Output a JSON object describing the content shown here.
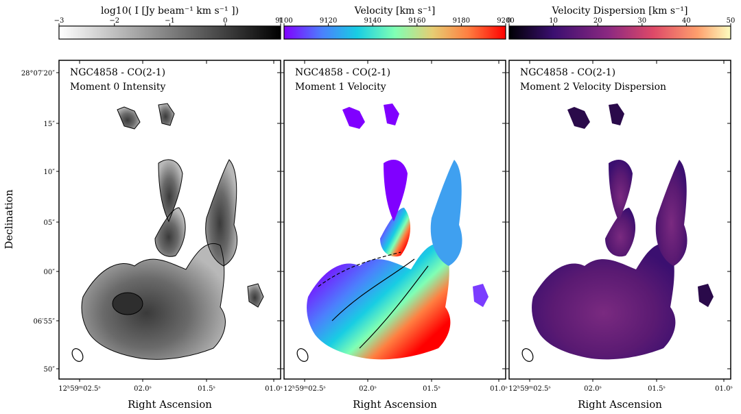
{
  "figure": {
    "ylabel": "Declination",
    "xlabel": "Right Ascension"
  },
  "colorbars": [
    {
      "label": "log10( I [Jy beam⁻¹ km s⁻¹ ])",
      "ticks": [
        "−3",
        "−2",
        "−1",
        "0",
        "1"
      ],
      "range": [
        -3,
        1
      ],
      "cmap": "gray_r"
    },
    {
      "label": "Velocity [km s⁻¹]",
      "ticks": [
        "9100",
        "9120",
        "9140",
        "9160",
        "9180",
        "9200"
      ],
      "range": [
        9100,
        9200
      ],
      "cmap": "rainbow"
    },
    {
      "label": "Velocity Dispersion [km s⁻¹]",
      "ticks": [
        "0",
        "10",
        "20",
        "30",
        "40",
        "50"
      ],
      "range": [
        0,
        50
      ],
      "cmap": "magma"
    }
  ],
  "panels": [
    {
      "object": "NGC4858 - CO(2-1)",
      "subtitle": "Moment 0 Intensity"
    },
    {
      "object": "NGC4858 - CO(2-1)",
      "subtitle": "Moment 1 Velocity"
    },
    {
      "object": "NGC4858 - CO(2-1)",
      "subtitle": "Moment 2 Velocity Dispersion"
    }
  ],
  "axes": {
    "yticks": [
      "28°07′20″",
      "15″",
      "10″",
      "05″",
      "00″",
      "06′55″",
      "50″"
    ],
    "xticks": [
      "12ʰ59ᵐ02.5ˢ",
      "02.0ˢ",
      "01.5ˢ",
      "01.0ˢ"
    ]
  },
  "chart_data": {
    "type": "heatmap",
    "title": "",
    "xlabel": "Right Ascension",
    "ylabel": "Declination",
    "x_ticks": [
      "12ʰ59ᵐ02.5ˢ",
      "02.0ˢ",
      "01.5ˢ",
      "01.0ˢ"
    ],
    "y_ticks": [
      "28°07′20″",
      "15″",
      "10″",
      "05″",
      "00″",
      "06′55″",
      "50″"
    ],
    "panels": [
      {
        "name": "Moment 0 Intensity",
        "quantity": "log10 I [Jy beam⁻¹ km s⁻¹]",
        "range": [
          -3,
          1
        ]
      },
      {
        "name": "Moment 1 Velocity",
        "quantity": "Velocity [km s⁻¹]",
        "range": [
          9100,
          9200
        ]
      },
      {
        "name": "Moment 2 Velocity Dispersion",
        "quantity": "Velocity Dispersion [km s⁻¹]",
        "range": [
          0,
          50
        ]
      }
    ],
    "grid": false
  },
  "colors": {
    "rainbow": [
      "#8000ff",
      "#4c7ffd",
      "#18cde3",
      "#80ffb4",
      "#e6cd73",
      "#ff7f41",
      "#ff0000"
    ],
    "magma": [
      "#000004",
      "#3b0f70",
      "#8c2981",
      "#de4968",
      "#fe9f6d",
      "#fcfdbf"
    ]
  }
}
